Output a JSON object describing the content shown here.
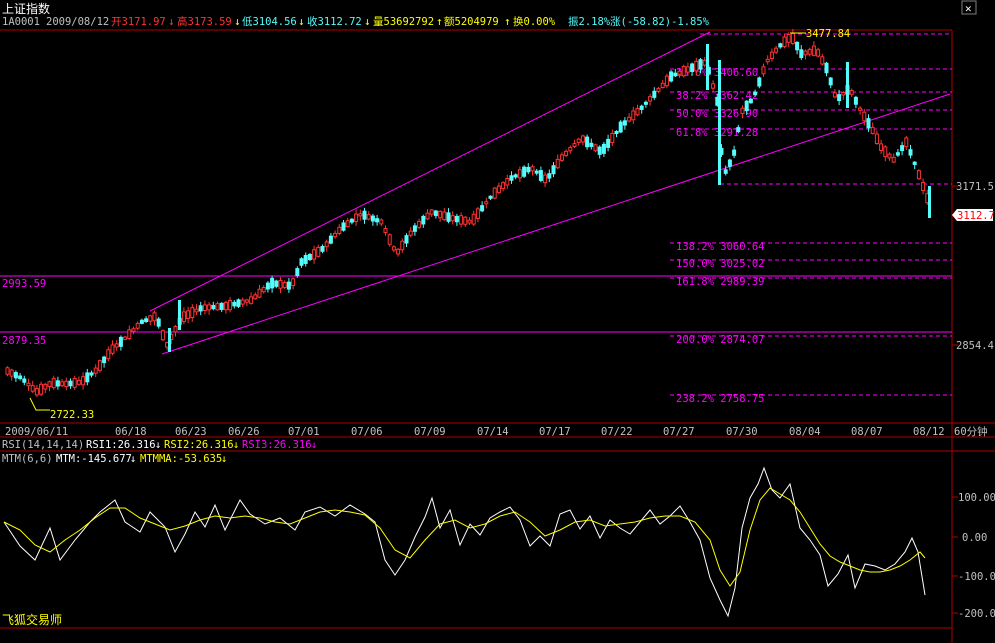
{
  "window": {
    "title": "上证指数",
    "close_glyph": "✕",
    "footer": "飞狐交易师"
  },
  "info_bar": {
    "code": "1A0001",
    "date": "2009/08/12",
    "open": "开3171.97",
    "high": "高3173.59",
    "low": "低3104.56",
    "close": "收3112.72",
    "volume": "量53692792",
    "amount": "额5204979",
    "turnover": "换0.00%",
    "amplitude": "振2.18%",
    "change": "涨(-58.82)-1.85%"
  },
  "colors": {
    "bg": "#000000",
    "up": "#ff3232",
    "down": "#54fcfc",
    "magenta": "#ff00ff",
    "axis": "#b00000",
    "label_magenta": "#ff00ff",
    "yellow": "#ffff00",
    "white": "#ffffff",
    "text_default": "#c0c0c0"
  },
  "price_axis": {
    "right_labels": [
      "3171.5",
      "2854.4"
    ],
    "current_price_tag": "3112.7",
    "left_labels": [
      "2993.59",
      "2879.35"
    ],
    "low_annotation": "2722.33",
    "high_annotation": "3477.84"
  },
  "fib_levels": [
    {
      "label": "23.6% 3406.60"
    },
    {
      "label": "38.2% 3362.42"
    },
    {
      "label": "50.0% 3326.90"
    },
    {
      "label": "61.8% 3291.28"
    },
    {
      "label": "138.2% 3060.64"
    },
    {
      "label": "150.0% 3025.02"
    },
    {
      "label": "161.8% 2989.39"
    },
    {
      "label": "200.0% 2874.07"
    },
    {
      "label": "238.2% 2758.75"
    }
  ],
  "date_axis": {
    "labels": [
      "2009/06/11",
      "06/18",
      "06/23",
      "06/26",
      "07/01",
      "07/06",
      "07/09",
      "07/14",
      "07/17",
      "07/22",
      "07/27",
      "07/30",
      "08/04",
      "08/07",
      "08/12"
    ],
    "period": "60分钟"
  },
  "rsi_bar": {
    "name": "RSI(14,14,14)",
    "rsi1": "RSI1:26.316",
    "rsi2": "RSI2:26.316",
    "rsi3": "RSI3:26.316"
  },
  "mtm_bar": {
    "name": "MTM(6,6)",
    "mtm": "MTM:-145.677",
    "mtmma": "MTMMA:-53.635"
  },
  "mtm_axis": {
    "labels": [
      "100.00",
      "0.00",
      "-100.0",
      "-200.0"
    ]
  }
}
